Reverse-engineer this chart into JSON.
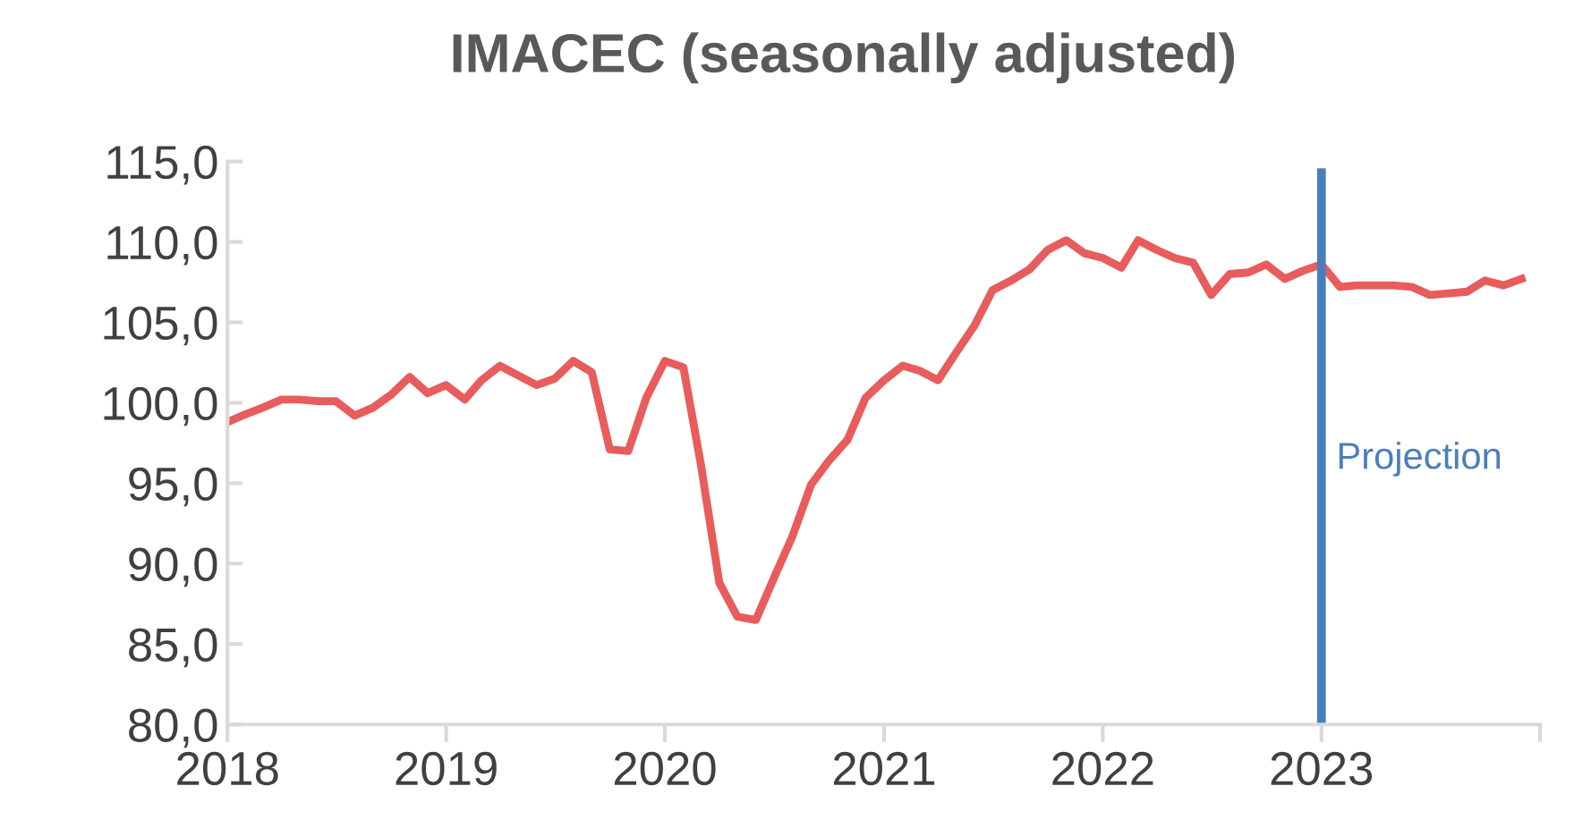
{
  "chart_data": {
    "type": "line",
    "title": "IMACEC (seasonally adjusted)",
    "x": [
      "2018-01",
      "2018-02",
      "2018-03",
      "2018-04",
      "2018-05",
      "2018-06",
      "2018-07",
      "2018-08",
      "2018-09",
      "2018-10",
      "2018-11",
      "2018-12",
      "2019-01",
      "2019-02",
      "2019-03",
      "2019-04",
      "2019-05",
      "2019-06",
      "2019-07",
      "2019-08",
      "2019-09",
      "2019-10",
      "2019-11",
      "2019-12",
      "2020-01",
      "2020-02",
      "2020-03",
      "2020-04",
      "2020-05",
      "2020-06",
      "2020-07",
      "2020-08",
      "2020-09",
      "2020-10",
      "2020-11",
      "2020-12",
      "2021-01",
      "2021-02",
      "2021-03",
      "2021-04",
      "2021-05",
      "2021-06",
      "2021-07",
      "2021-08",
      "2021-09",
      "2021-10",
      "2021-11",
      "2021-12",
      "2022-01",
      "2022-02",
      "2022-03",
      "2022-04",
      "2022-05",
      "2022-06",
      "2022-07",
      "2022-08",
      "2022-09",
      "2022-10",
      "2022-11",
      "2022-12",
      "2023-01",
      "2023-02",
      "2023-03",
      "2023-04",
      "2023-05",
      "2023-06",
      "2023-07",
      "2023-08",
      "2023-09",
      "2023-10",
      "2023-11",
      "2023-12"
    ],
    "series": [
      {
        "color": "#e85c5c",
        "values": [
          98.8,
          99.3,
          99.7,
          100.2,
          100.2,
          100.1,
          100.1,
          99.2,
          99.7,
          100.5,
          101.6,
          100.6,
          101.1,
          100.2,
          101.4,
          102.3,
          101.7,
          101.1,
          101.5,
          102.6,
          101.9,
          97.1,
          97.0,
          100.3,
          102.6,
          102.2,
          96.2,
          88.8,
          86.7,
          86.5,
          89.1,
          91.7,
          94.9,
          96.4,
          97.7,
          100.3,
          101.4,
          102.3,
          102.0,
          101.4,
          103.1,
          104.8,
          107.0,
          107.6,
          108.3,
          109.5,
          110.1,
          109.3,
          109.0,
          108.4,
          110.1,
          109.5,
          109.0,
          108.7,
          106.7,
          108.0,
          108.1,
          108.6,
          107.7,
          108.2,
          108.6,
          107.2,
          107.3,
          107.3,
          107.3,
          107.2,
          106.7,
          106.8,
          106.9,
          107.6,
          107.3,
          107.7
        ]
      }
    ],
    "xlim": [
      "2018-01",
      "2024-01"
    ],
    "xticks": [
      "2018",
      "2019",
      "2020",
      "2021",
      "2022",
      "2023",
      {
        "value": "2024",
        "label": null
      }
    ],
    "ylim": [
      80,
      115
    ],
    "yticks": [
      {
        "value": 80,
        "label": "80,0"
      },
      {
        "value": 85,
        "label": "85,0"
      },
      {
        "value": 90,
        "label": "90,0"
      },
      {
        "value": 95,
        "label": "95,0"
      },
      {
        "value": 100,
        "label": "100,0"
      },
      {
        "value": 105,
        "label": "105,0"
      },
      {
        "value": 110,
        "label": "110,0"
      },
      {
        "value": 115,
        "label": "115,0"
      }
    ],
    "ref_lines": [
      {
        "axis": "x",
        "value": "2023-01",
        "label": "Projection",
        "color": "#4a7ebb"
      }
    ],
    "grid": false,
    "legend": false,
    "marker": "none",
    "line_style": "solid"
  }
}
